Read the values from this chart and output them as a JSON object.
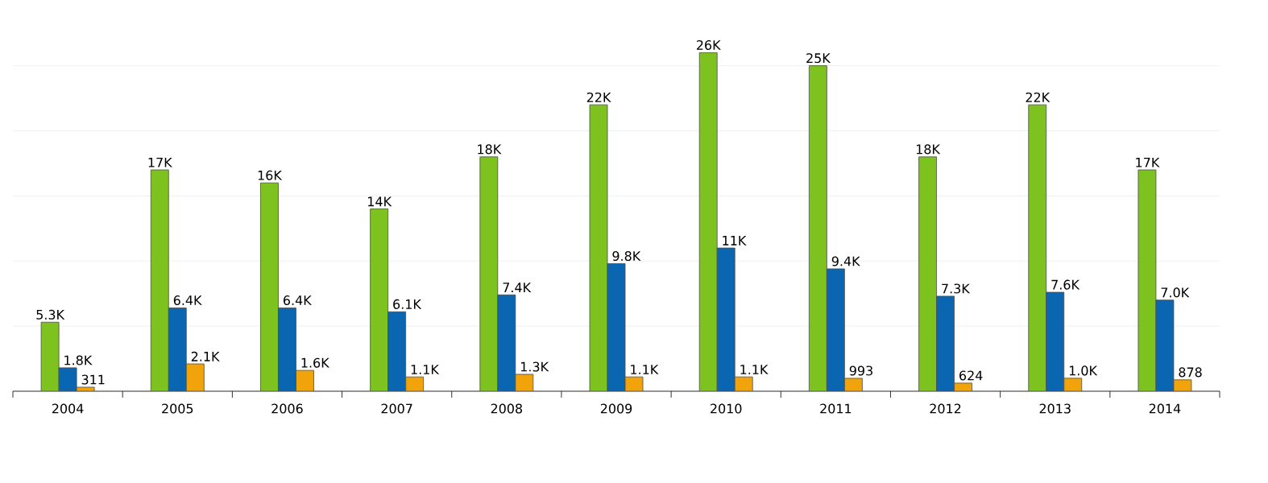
{
  "chart_data": {
    "type": "bar",
    "categories": [
      "2004",
      "2005",
      "2006",
      "2007",
      "2008",
      "2009",
      "2010",
      "2011",
      "2012",
      "2013",
      "2014"
    ],
    "series": [
      {
        "color": "#7dc21e",
        "values": [
          5300,
          17000,
          16000,
          14000,
          18000,
          22000,
          26000,
          25000,
          18000,
          22000,
          17000
        ],
        "value_labels": [
          "5.3K",
          "17K",
          "16K",
          "14K",
          "18K",
          "22K",
          "26K",
          "25K",
          "18K",
          "22K",
          "17K"
        ]
      },
      {
        "color": "#0a66b0",
        "values": [
          1800,
          6400,
          6400,
          6100,
          7400,
          9800,
          11000,
          9400,
          7300,
          7600,
          7000
        ],
        "value_labels": [
          "1.8K",
          "6.4K",
          "6.4K",
          "6.1K",
          "7.4K",
          "9.8K",
          "11K",
          "9.4K",
          "7.3K",
          "7.6K",
          "7.0K"
        ]
      },
      {
        "color": "#f0a30a",
        "values": [
          311,
          2100,
          1600,
          1100,
          1300,
          1100,
          1100,
          993,
          624,
          1000,
          878
        ],
        "value_labels": [
          "311",
          "2.1K",
          "1.6K",
          "1.1K",
          "1.3K",
          "1.1K",
          "1.1K",
          "993",
          "624",
          "1.0K",
          "878"
        ]
      }
    ],
    "grid": "y",
    "tick_labels": "x"
  }
}
